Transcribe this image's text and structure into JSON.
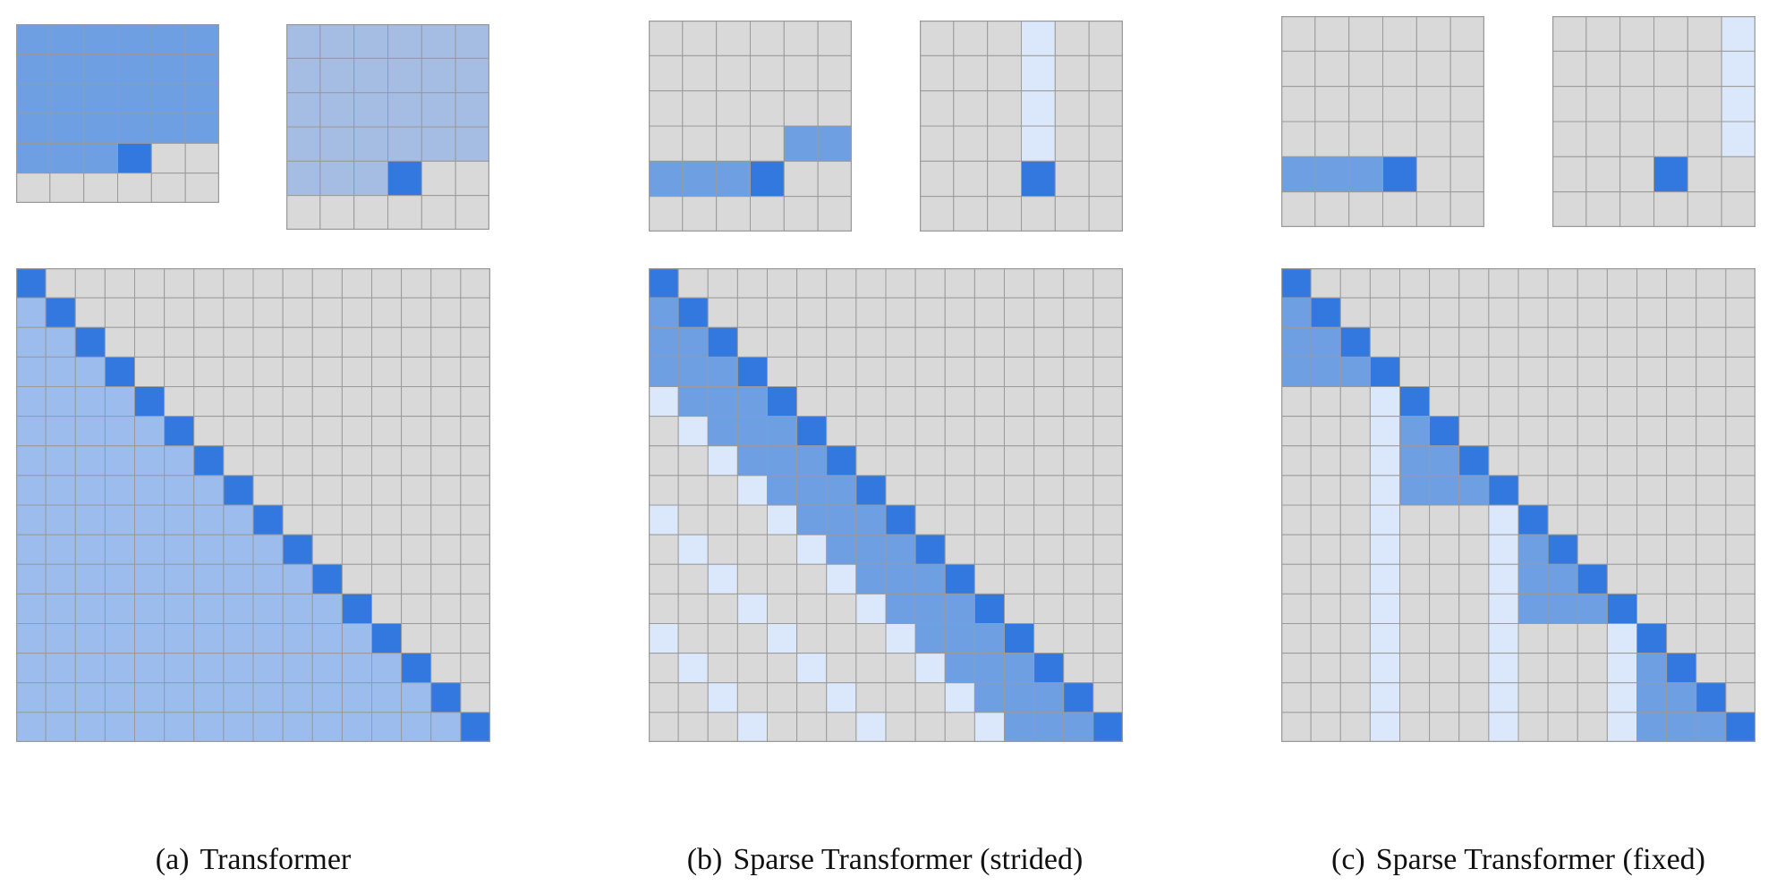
{
  "colors": {
    "empty": "#d9d9d9",
    "query": "#3278de",
    "full": "#6f9fe3",
    "dense": "#9bbcec",
    "light": "#dbe8fb",
    "soft": "#a5bde3",
    "gridline": "#9a9a9a"
  },
  "panels": [
    {
      "caption_tag": "(a)",
      "caption_text": "Transformer",
      "small_grids": [
        {
          "rows": [
            "FFFFFF",
            "FFFFFF",
            "FFFFFF",
            "FFFFFF",
            "FFFQ..",
            "......"
          ]
        },
        {
          "rows": [
            "SSSSSS",
            "SSSSSS",
            "SSSSSS",
            "SSSSSS",
            "SSSQ..",
            "......"
          ]
        }
      ],
      "big_grid": {
        "pattern": "causal",
        "size": 16
      }
    },
    {
      "caption_tag": "(b)",
      "caption_text": "Sparse Transformer (strided)",
      "small_grids": [
        {
          "rows": [
            "......",
            "......",
            "......",
            "....FF",
            "FFFQ..",
            "......"
          ]
        },
        {
          "rows": [
            "...L..",
            "...L..",
            "...L..",
            "...L..",
            "...Q..",
            "......"
          ]
        }
      ],
      "big_grid": {
        "pattern": "strided",
        "size": 16,
        "stride": 4
      }
    },
    {
      "caption_tag": "(c)",
      "caption_text": "Sparse Transformer (fixed)",
      "small_grids": [
        {
          "rows": [
            "......",
            "......",
            "......",
            "......",
            "FFFQ..",
            "......"
          ]
        },
        {
          "rows": [
            ".....L",
            ".....L",
            ".....L",
            ".....L",
            "...Q..",
            "......"
          ]
        }
      ],
      "big_grid": {
        "pattern": "fixed",
        "size": 16,
        "stride": 4
      }
    }
  ]
}
